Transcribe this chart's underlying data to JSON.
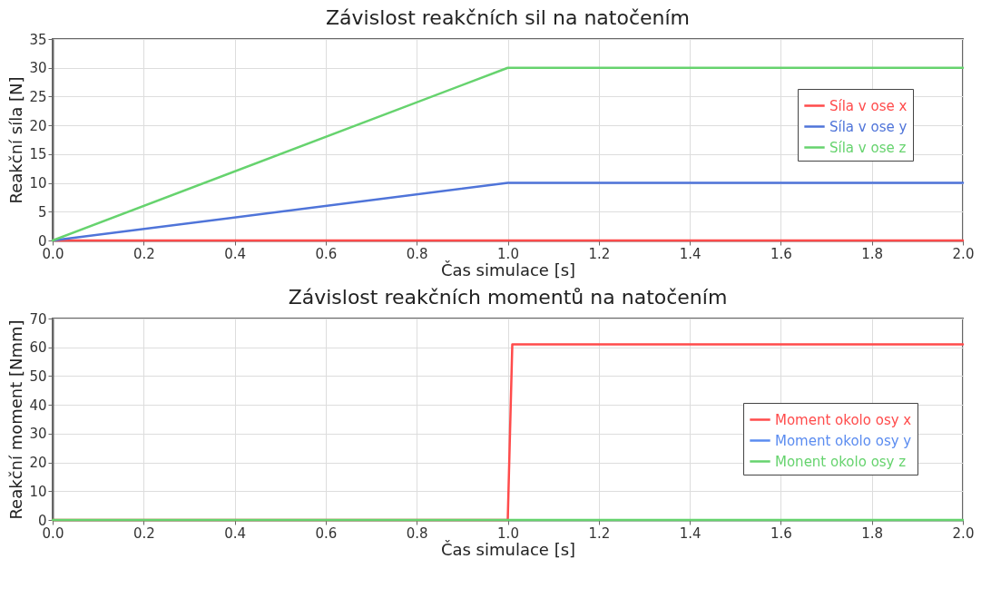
{
  "chart_data": [
    {
      "type": "line",
      "title": "Závislost reakčních sil na natočením",
      "xlabel": "Čas simulace [s]",
      "ylabel": "Reakční síla [N]",
      "xlim": [
        0,
        2
      ],
      "ylim": [
        0,
        35
      ],
      "xticks": [
        {
          "value": 0,
          "label": "0.0"
        },
        {
          "value": 0.2,
          "label": "0.2"
        },
        {
          "value": 0.4,
          "label": "0.4"
        },
        {
          "value": 0.6,
          "label": "0.6"
        },
        {
          "value": 0.8,
          "label": "0.8"
        },
        {
          "value": 1,
          "label": "1.0"
        },
        {
          "value": 1.2,
          "label": "1.2"
        },
        {
          "value": 1.4,
          "label": "1.4"
        },
        {
          "value": 1.6,
          "label": "1.6"
        },
        {
          "value": 1.8,
          "label": "1.8"
        },
        {
          "value": 2,
          "label": "2.0"
        }
      ],
      "yticks": [
        0,
        5,
        10,
        15,
        20,
        25,
        30,
        35
      ],
      "grid": true,
      "legend": "right",
      "series": [
        {
          "name": "Síla v ose x",
          "color": "#ff4b4b",
          "x": [
            0,
            1,
            2
          ],
          "values": [
            0,
            0,
            0
          ]
        },
        {
          "name": "Síla v ose y",
          "color": "#4f74d9",
          "x": [
            0,
            1,
            2
          ],
          "values": [
            0,
            10,
            10
          ]
        },
        {
          "name": "Síla v ose z",
          "color": "#66d36e",
          "x": [
            0,
            1,
            2
          ],
          "values": [
            0,
            30,
            30
          ]
        }
      ]
    },
    {
      "type": "line",
      "title": "Závislost reakčních momentů na natočením",
      "xlabel": "Čas simulace [s]",
      "ylabel": "Reakční moment [Nmm]",
      "xlim": [
        0,
        2
      ],
      "ylim": [
        0,
        70
      ],
      "xticks": [
        {
          "value": 0,
          "label": "0.0"
        },
        {
          "value": 0.2,
          "label": "0.2"
        },
        {
          "value": 0.4,
          "label": "0.4"
        },
        {
          "value": 0.6,
          "label": "0.6"
        },
        {
          "value": 0.8,
          "label": "0.8"
        },
        {
          "value": 1,
          "label": "1.0"
        },
        {
          "value": 1.2,
          "label": "1.2"
        },
        {
          "value": 1.4,
          "label": "1.4"
        },
        {
          "value": 1.6,
          "label": "1.6"
        },
        {
          "value": 1.8,
          "label": "1.8"
        },
        {
          "value": 2,
          "label": "2.0"
        }
      ],
      "yticks": [
        0,
        10,
        20,
        30,
        40,
        50,
        60,
        70
      ],
      "grid": true,
      "legend": "bottom right",
      "series": [
        {
          "name": "Moment okolo osy x",
          "color": "#ff4b4b",
          "x": [
            0,
            1,
            1.01,
            2
          ],
          "values": [
            0,
            0,
            61,
            61
          ]
        },
        {
          "name": "Moment okolo osy y",
          "color": "#5b8cf0"
        },
        {
          "name": "Monent okolo osy z",
          "color": "#66d36e",
          "x": [
            0,
            2
          ],
          "values": [
            0,
            0
          ]
        }
      ]
    }
  ]
}
